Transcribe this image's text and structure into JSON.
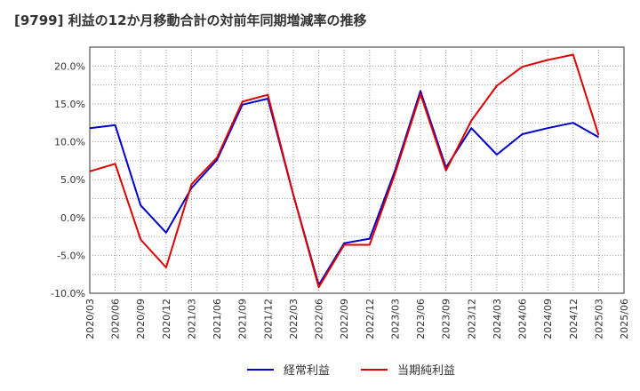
{
  "chart_data": {
    "type": "line",
    "title": "[9799]  利益の12か月移動合計の対前年同期増減率の推移",
    "xlabel": "",
    "ylabel": "",
    "ylim": [
      -10,
      22.5
    ],
    "yticks": [
      -10,
      -5,
      0,
      5,
      10,
      15,
      20
    ],
    "ytick_labels": [
      "-10.0%",
      "-5.0%",
      "0.0%",
      "5.0%",
      "10.0%",
      "15.0%",
      "20.0%"
    ],
    "categories": [
      "2020/03",
      "2020/06",
      "2020/09",
      "2020/12",
      "2021/03",
      "2021/06",
      "2021/09",
      "2021/12",
      "2022/03",
      "2022/06",
      "2022/09",
      "2022/12",
      "2023/03",
      "2023/06",
      "2023/09",
      "2023/12",
      "2024/03",
      "2024/06",
      "2024/09",
      "2024/12",
      "2025/03",
      "2025/06"
    ],
    "grid": true,
    "legend_position": "bottom",
    "series": [
      {
        "name": "経常利益",
        "color": "#0000cc",
        "values": [
          11.8,
          12.2,
          1.6,
          -2.0,
          3.9,
          7.6,
          14.9,
          15.7,
          3.0,
          -8.9,
          -3.4,
          -2.8,
          6.2,
          16.7,
          6.6,
          11.8,
          8.3,
          11.0,
          11.8,
          12.5,
          10.6,
          null
        ]
      },
      {
        "name": "当期純利益",
        "color": "#dd0000",
        "values": [
          6.1,
          7.1,
          -2.9,
          -6.6,
          4.4,
          7.9,
          15.3,
          16.2,
          3.0,
          -9.2,
          -3.6,
          -3.6,
          5.8,
          16.3,
          6.2,
          12.8,
          17.4,
          19.9,
          20.8,
          21.5,
          10.9,
          null
        ]
      }
    ]
  }
}
